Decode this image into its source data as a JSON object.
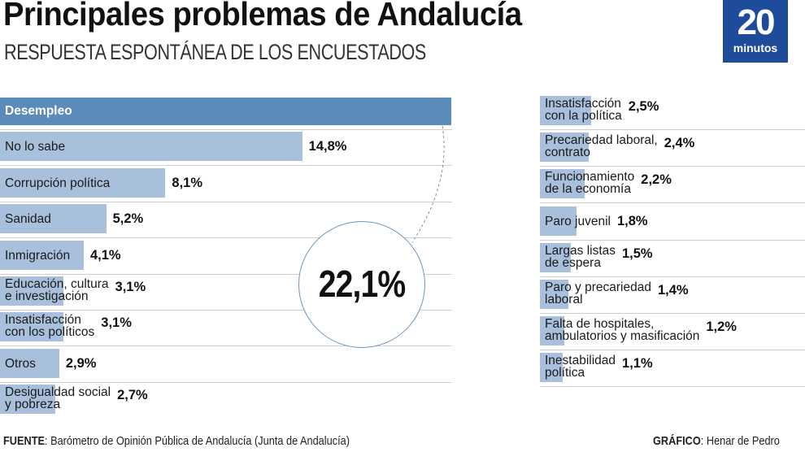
{
  "header": {
    "title": "Principales problemas de Andalucía",
    "subtitle": "RESPUESTA ESPONTÁNEA DE LOS ENCUESTADOS"
  },
  "logo": {
    "number": "20",
    "word": "minutos",
    "color": "#1e4c9a"
  },
  "highlight": {
    "value_label": "22,1%"
  },
  "footer": {
    "source_label": "FUENTE",
    "source_text": ": Barómetro de Opinión Pública de Andalucía (Junta de Andalucía)",
    "credit_label": "GRÁFICO",
    "credit_text": ": Henar de Pedro"
  },
  "colors": {
    "highlight_bar": "#5b8bba",
    "bar": "#a9c0dc"
  },
  "chart_data": {
    "type": "bar",
    "orientation": "horizontal",
    "title": "Principales problemas de Andalucía",
    "subtitle": "RESPUESTA ESPONTÁNEA DE LOS ENCUESTADOS",
    "unit": "%",
    "categories": [
      "Desempleo",
      "No lo sabe",
      "Corrupción política",
      "Sanidad",
      "Inmigración",
      "Educación, cultura e investigación",
      "Insatisfacción con los políticos",
      "Otros",
      "Desigualdad social y pobreza",
      "Insatisfacción con la política",
      "Precariedad laboral, contrato",
      "Funcionamiento de la economía",
      "Paro juvenil",
      "Largas listas de espera",
      "Paro y precariedad laboral",
      "Falta de hospitales, ambulatorios y masificación",
      "Inestabilidad política"
    ],
    "values": [
      22.1,
      14.8,
      8.1,
      5.2,
      4.1,
      3.1,
      3.1,
      2.9,
      2.7,
      2.5,
      2.4,
      2.2,
      1.8,
      1.5,
      1.4,
      1.2,
      1.1
    ],
    "columns": [
      {
        "items": [
          {
            "label": [
              "Desempleo"
            ],
            "value": 22.1,
            "value_label": "22,1%"
          },
          {
            "label": [
              "No lo sabe"
            ],
            "value": 14.8,
            "value_label": "14,8%"
          },
          {
            "label": [
              "Corrupción política"
            ],
            "value": 8.1,
            "value_label": "8,1%"
          },
          {
            "label": [
              "Sanidad"
            ],
            "value": 5.2,
            "value_label": "5,2%"
          },
          {
            "label": [
              "Inmigración"
            ],
            "value": 4.1,
            "value_label": "4,1%"
          },
          {
            "label": [
              "Educación, cultura",
              "e investigación"
            ],
            "value": 3.1,
            "value_label": "3,1%"
          },
          {
            "label": [
              "Insatisfacción",
              "con los políticos"
            ],
            "value": 3.1,
            "value_label": "3,1%"
          },
          {
            "label": [
              "Otros"
            ],
            "value": 2.9,
            "value_label": "2,9%"
          },
          {
            "label": [
              "Desigualdad social",
              "y pobreza"
            ],
            "value": 2.7,
            "value_label": "2,7%"
          }
        ]
      },
      {
        "items": [
          {
            "label": [
              "Insatisfacción",
              "con la política"
            ],
            "value": 2.5,
            "value_label": "2,5%"
          },
          {
            "label": [
              "Precariedad laboral,",
              "contrato"
            ],
            "value": 2.4,
            "value_label": "2,4%"
          },
          {
            "label": [
              "Funcionamiento",
              "de la economía"
            ],
            "value": 2.2,
            "value_label": "2,2%"
          },
          {
            "label": [
              "Paro juvenil"
            ],
            "value": 1.8,
            "value_label": "1,8%"
          },
          {
            "label": [
              "Largas listas",
              "de espera"
            ],
            "value": 1.5,
            "value_label": "1,5%"
          },
          {
            "label": [
              "Paro y precariedad",
              "laboral"
            ],
            "value": 1.4,
            "value_label": "1,4%"
          },
          {
            "label": [
              "Falta de hospitales,",
              "ambulatorios y masificación"
            ],
            "value": 1.2,
            "value_label": "1,2%"
          },
          {
            "label": [
              "Inestabilidad",
              "política"
            ],
            "value": 1.1,
            "value_label": "1,1%"
          }
        ]
      }
    ],
    "xlim": [
      0,
      22.1
    ],
    "grid": false,
    "legend": "none"
  }
}
